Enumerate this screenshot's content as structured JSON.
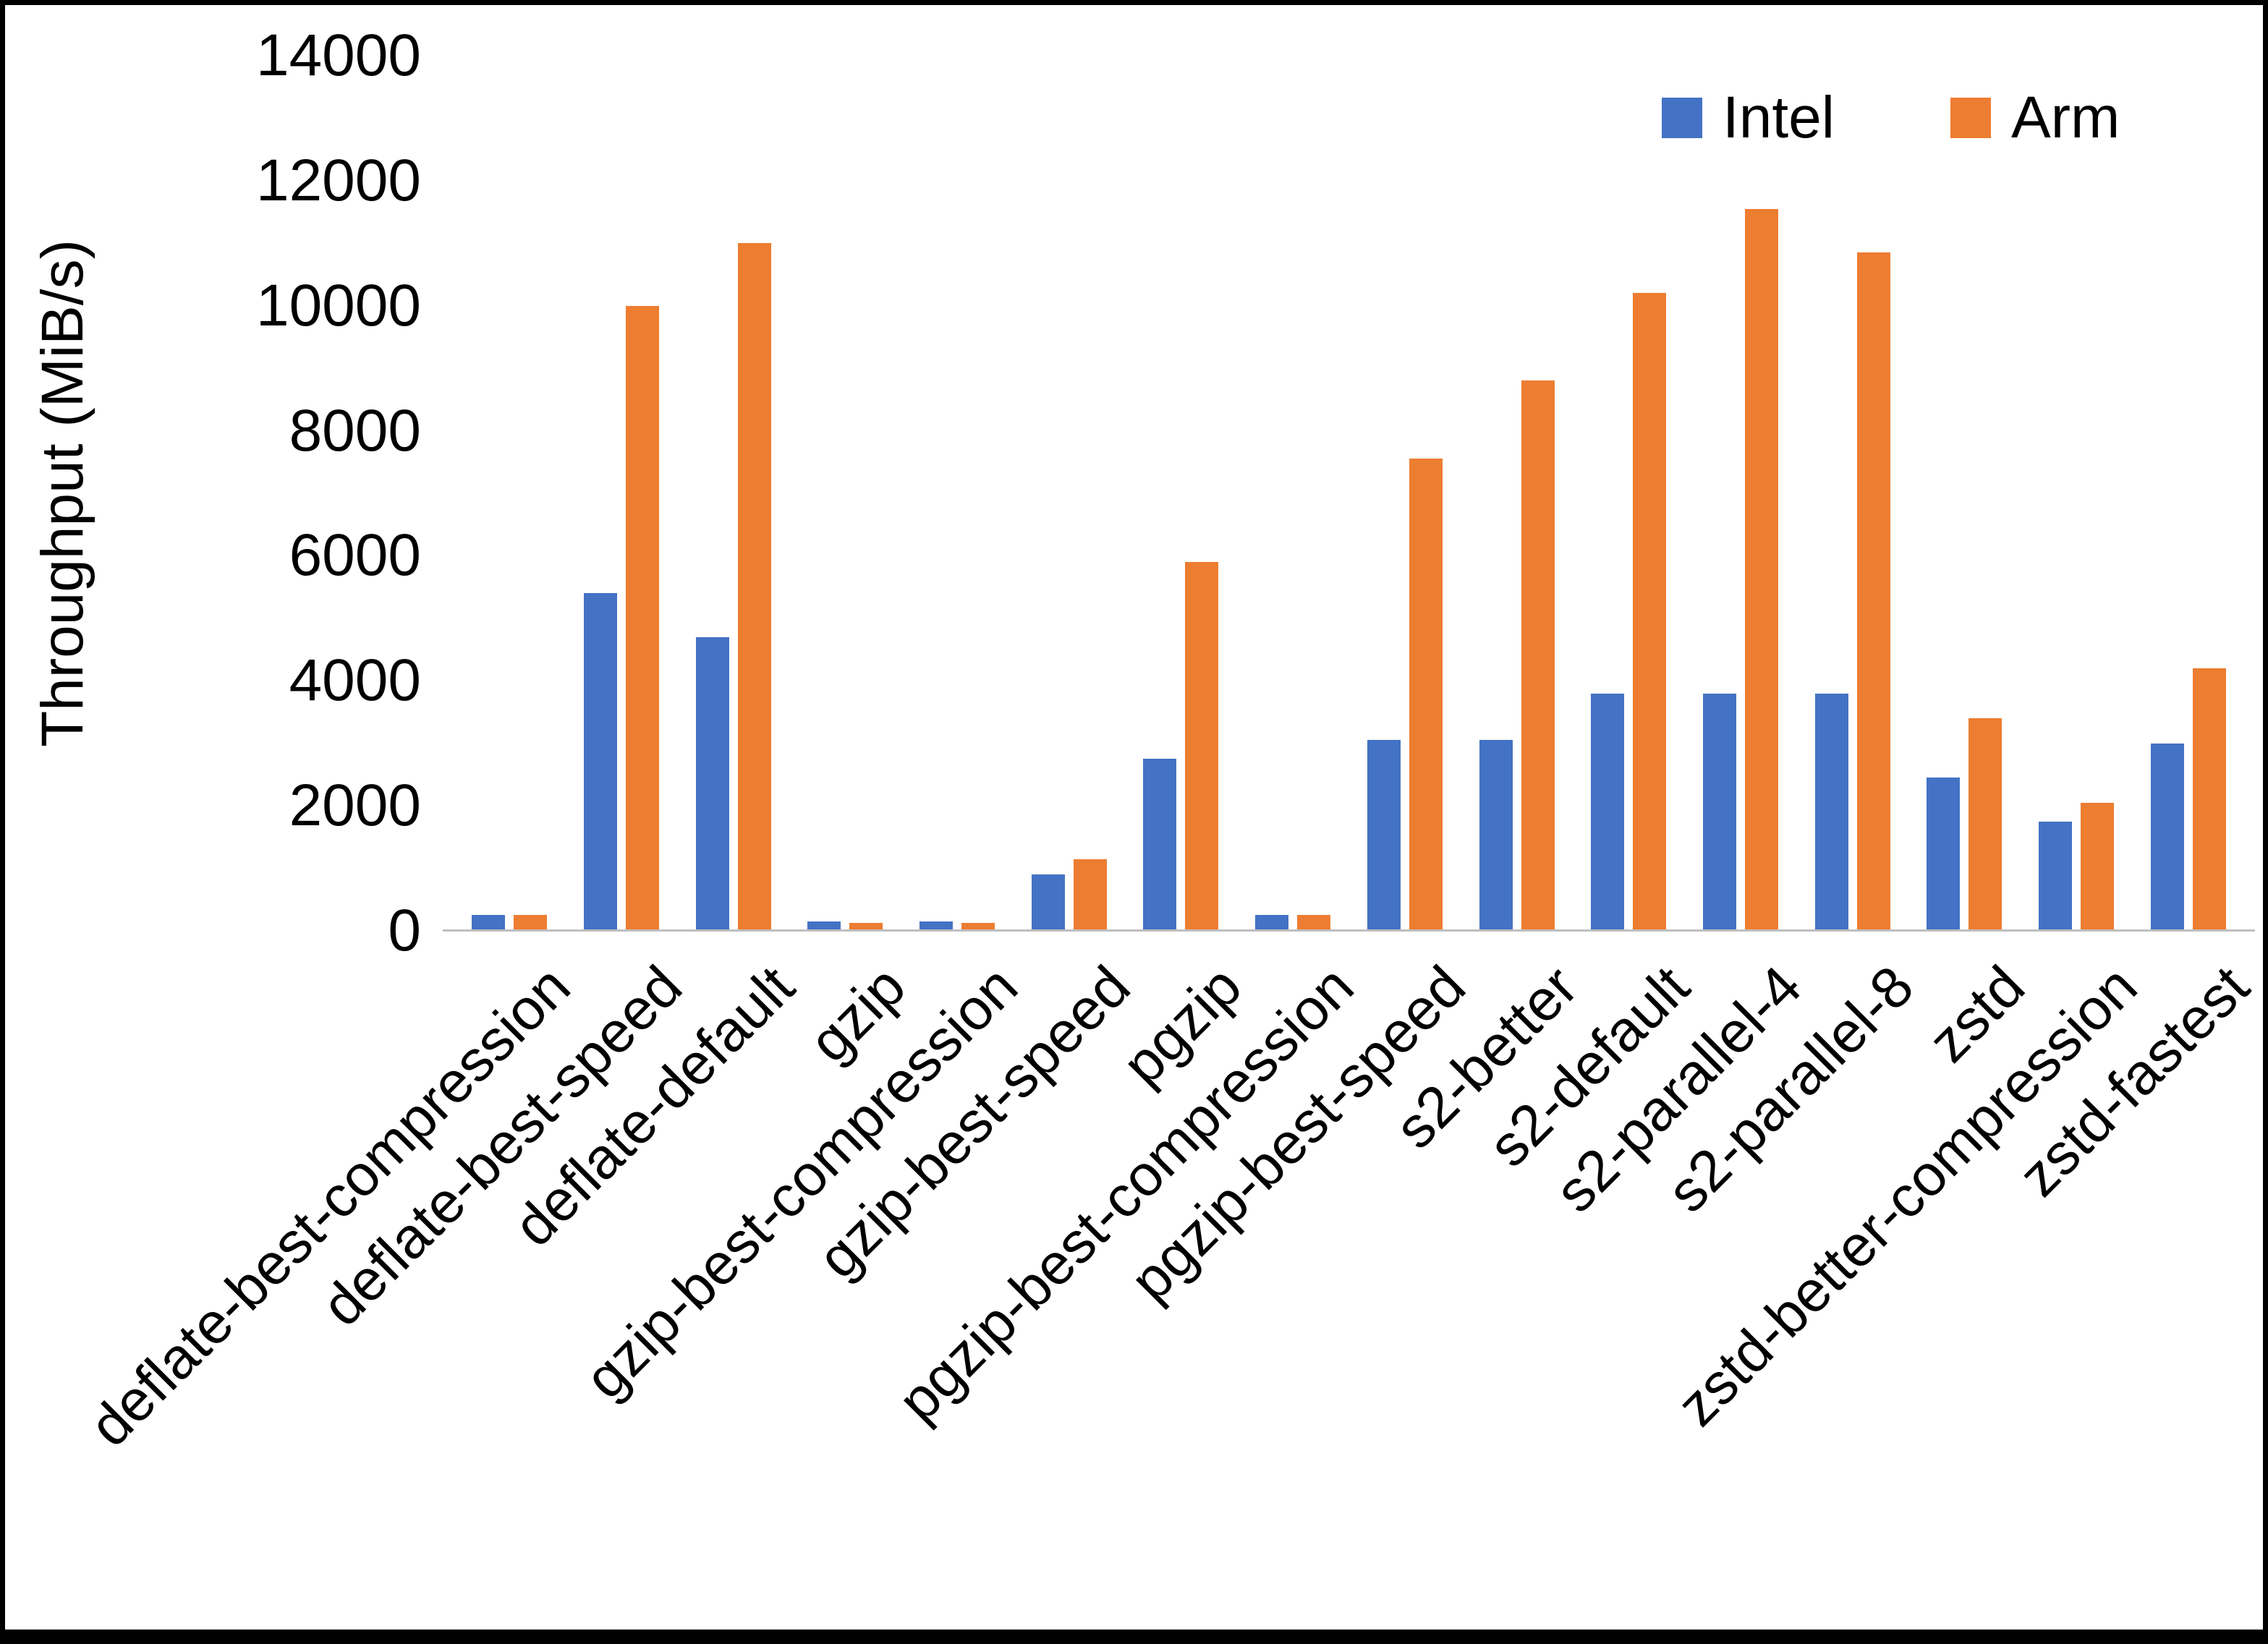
{
  "chart_data": {
    "type": "bar",
    "title": "",
    "xlabel": "",
    "ylabel": "Throughput (MiB/s)",
    "ylim": [
      0,
      14000
    ],
    "yticks": [
      0,
      2000,
      4000,
      6000,
      8000,
      10000,
      12000,
      14000
    ],
    "grid": false,
    "legend_position": "top-right",
    "axis_color": "#bfbfbf",
    "categories": [
      "deflate-best-compression",
      "deflate-best-speed",
      "deflate-default",
      "gzip",
      "gzip-best-compression",
      "gzip-best-speed",
      "pgzip",
      "pgzip-best-compression",
      "pgzip-best-speed",
      "s2-better",
      "s2-default",
      "s2-parallel-4",
      "s2-parallel-8",
      "zstd",
      "zstd-better-compression",
      "zstd-fastest"
    ],
    "series": [
      {
        "name": "Intel",
        "color": "#4472C4",
        "values": [
          250,
          5400,
          4700,
          150,
          150,
          900,
          2750,
          250,
          3050,
          3050,
          3800,
          3800,
          3800,
          2450,
          1750,
          3000
        ]
      },
      {
        "name": "Arm",
        "color": "#ED7D31",
        "values": [
          250,
          10000,
          11000,
          130,
          130,
          1150,
          5900,
          250,
          7550,
          8800,
          10200,
          11550,
          10850,
          3400,
          2050,
          4200
        ]
      }
    ]
  }
}
